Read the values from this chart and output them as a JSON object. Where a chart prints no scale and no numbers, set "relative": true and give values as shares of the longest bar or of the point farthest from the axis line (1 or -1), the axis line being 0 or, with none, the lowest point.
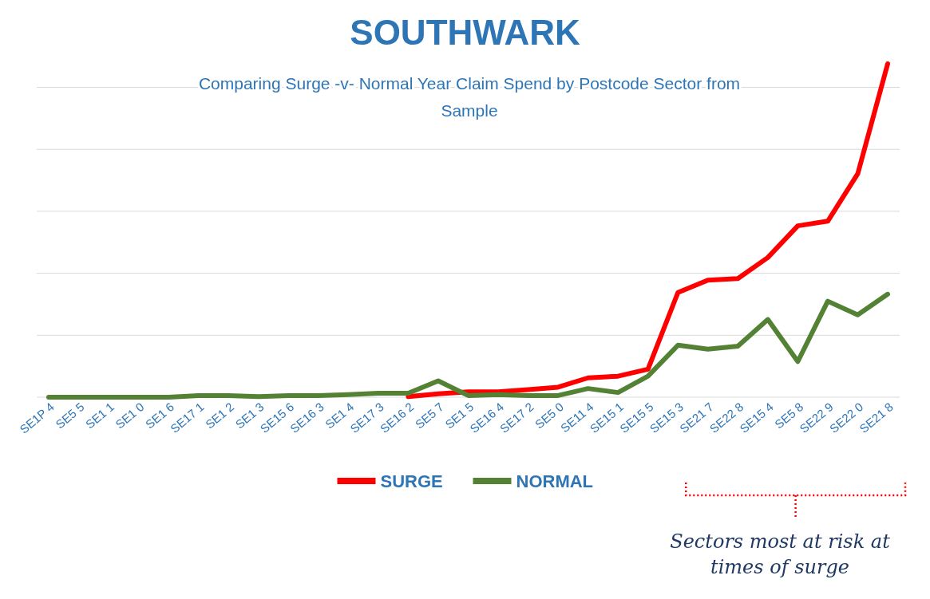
{
  "chart_data": {
    "type": "line",
    "title": "SOUTHWARK",
    "subtitle": "Comparing Surge -v- Normal Year Claim Spend by Postcode Sector from Sample",
    "relative": true,
    "categories": [
      "SE1P 4",
      "SE5 5",
      "SE1 1",
      "SE1 0",
      "SE1 6",
      "SE17 1",
      "SE1 2",
      "SE1 3",
      "SE15 6",
      "SE16 3",
      "SE1 4",
      "SE17 3",
      "SE16 2",
      "SE5 7",
      "SE1 5",
      "SE16 4",
      "SE17 2",
      "SE5 0",
      "SE11 4",
      "SE15 1",
      "SE15 5",
      "SE15 3",
      "SE21 7",
      "SE22 8",
      "SE15 4",
      "SE5 8",
      "SE22 9",
      "SE22 0",
      "SE21 8"
    ],
    "series": [
      {
        "name": "SURGE",
        "color": "#ff0000",
        "values": [
          null,
          null,
          null,
          null,
          null,
          null,
          null,
          null,
          null,
          null,
          null,
          null,
          0.002,
          0.01,
          0.016,
          0.016,
          0.023,
          0.03,
          0.058,
          0.063,
          0.084,
          0.314,
          0.351,
          0.356,
          0.419,
          0.514,
          0.528,
          0.67,
          1
        ]
      },
      {
        "name": "NORMAL",
        "color": "#548235",
        "values": [
          0,
          0,
          0,
          0,
          0,
          0.005,
          0.005,
          0.002,
          0.005,
          0.005,
          0.008,
          0.012,
          0.012,
          0.049,
          0.005,
          0.008,
          0.005,
          0.005,
          0.026,
          0.014,
          0.063,
          0.156,
          0.144,
          0.153,
          0.233,
          0.107,
          0.288,
          0.247,
          0.309
        ]
      }
    ],
    "grid": "y",
    "legend": "bottom",
    "line_style": "solid",
    "marker": "none",
    "annotations": [
      "Sectors most at risk at times of surge"
    ]
  }
}
